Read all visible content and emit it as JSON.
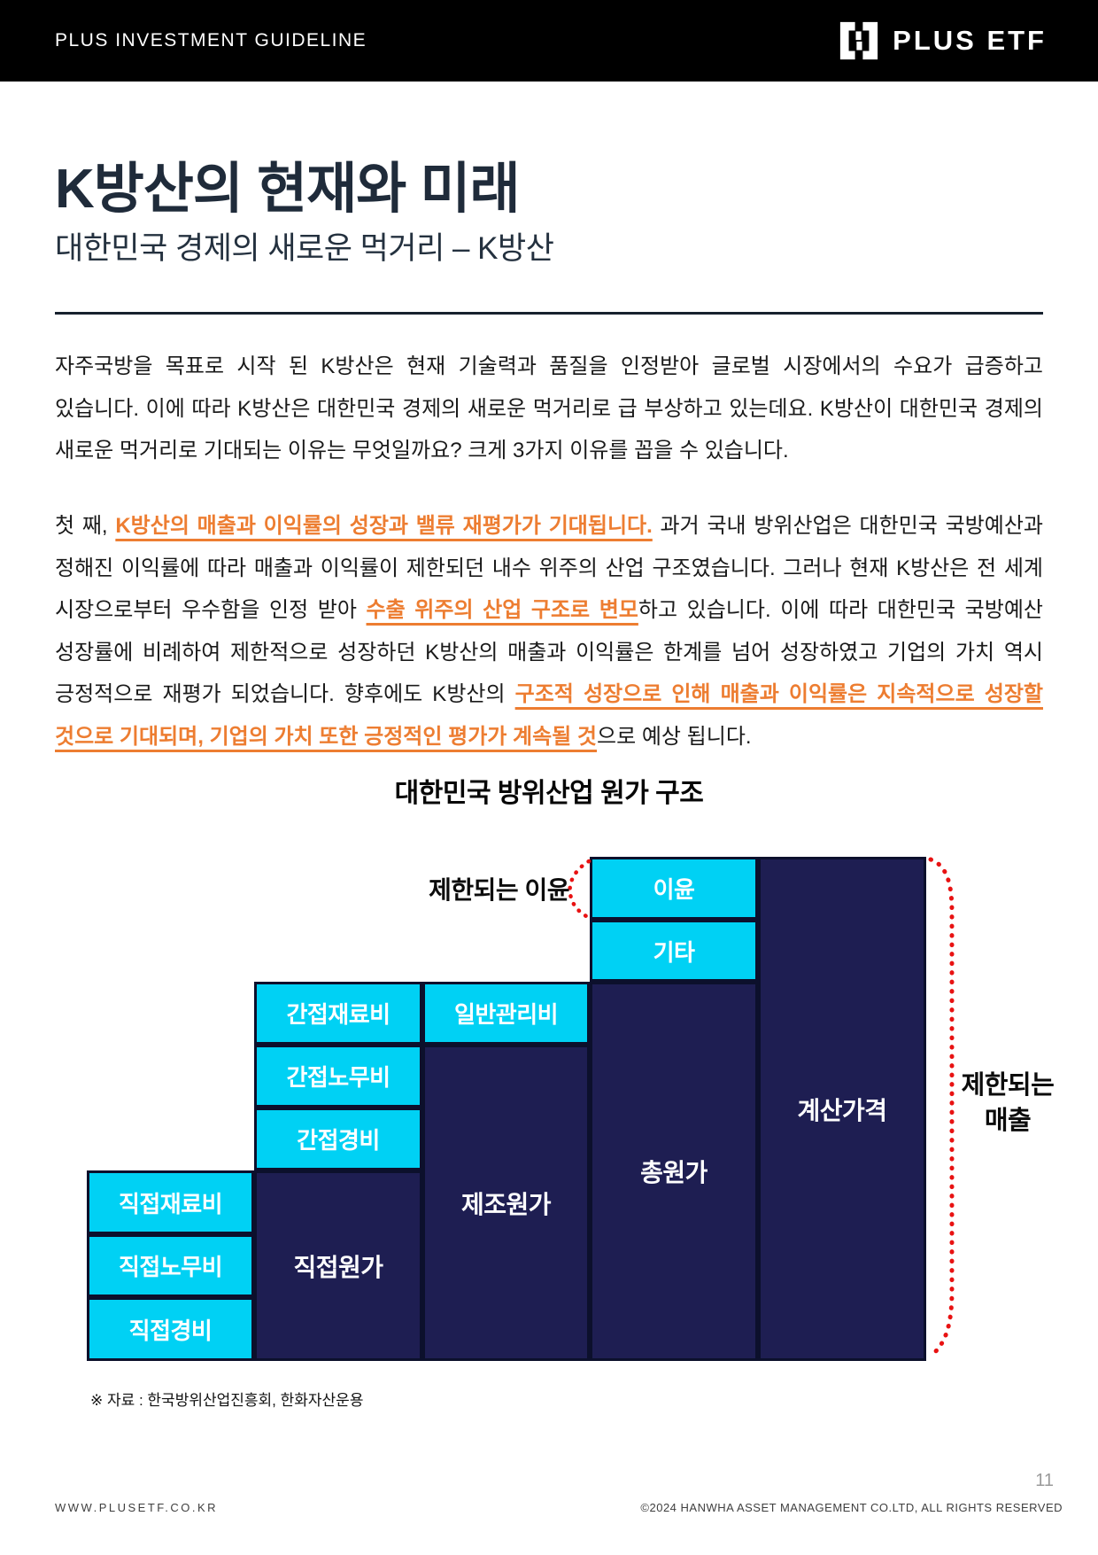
{
  "header": {
    "left_label": "PLUS INVESTMENT GUIDELINE",
    "brand_name": "PLUS ETF"
  },
  "headline": {
    "title": "K방산의 현재와 미래",
    "subtitle": "대한민국 경제의 새로운 먹거리 – K방산"
  },
  "paragraph1": "자주국방을 목표로 시작 된 K방산은 현재 기술력과 품질을 인정받아 글로벌 시장에서의 수요가 급증하고 있습니다. 이에 따라 K방산은 대한민국 경제의 새로운 먹거리로 급 부상하고 있는데요. K방산이 대한민국 경제의 새로운 먹거리로 기대되는 이유는 무엇일까요? 크게 3가지 이유를 꼽을 수 있습니다.",
  "paragraph2": {
    "segments": [
      {
        "text": "첫 째, ",
        "highlight": false
      },
      {
        "text": "K방산의 매출과 이익률의 성장과 밸류 재평가가 기대됩니다.",
        "highlight": true
      },
      {
        "text": " 과거 국내 방위산업은 대한민국 국방예산과 정해진 이익률에 따라 매출과 이익률이 제한되던 내수 위주의 산업 구조였습니다. 그러나 현재 K방산은 전 세계 시장으로부터 우수함을 인정 받아 ",
        "highlight": false
      },
      {
        "text": "수출 위주의 산업 구조로 변모",
        "highlight": true
      },
      {
        "text": "하고 있습니다. 이에 따라 대한민국 국방예산 성장률에 비례하여 제한적으로 성장하던 K방산의 매출과 이익률은 한계를 넘어 성장하였고 기업의 가치 역시 긍정적으로 재평가 되었습니다. 향후에도 K방산의 ",
        "highlight": false
      },
      {
        "text": "구조적 성장으로 인해 매출과 이익률은 지속적으로 성장할 것으로 기대되며, 기업의 가치 또한 긍정적인 평가가 계속될 것",
        "highlight": true
      },
      {
        "text": "으로 예상 됩니다.",
        "highlight": false
      }
    ]
  },
  "chart": {
    "title": "대한민국 방위산업 원가 구조",
    "annotation_profit": "제한되는 이윤",
    "annotation_sales_line1": "제한되는",
    "annotation_sales_line2": "매출",
    "colors": {
      "cyan": "#00d1f4",
      "navy": "#1e1e52",
      "red_dotted": "#e81212"
    },
    "blocks": [
      {
        "label": "이윤",
        "type": "cyan"
      },
      {
        "label": "기타",
        "type": "cyan"
      },
      {
        "label": "간접재료비",
        "type": "cyan"
      },
      {
        "label": "일반관리비",
        "type": "cyan"
      },
      {
        "label": "간접노무비",
        "type": "cyan"
      },
      {
        "label": "간접경비",
        "type": "cyan"
      },
      {
        "label": "직접재료비",
        "type": "cyan"
      },
      {
        "label": "직접노무비",
        "type": "cyan"
      },
      {
        "label": "직접경비",
        "type": "cyan"
      },
      {
        "label": "직접원가",
        "type": "navy"
      },
      {
        "label": "제조원가",
        "type": "navy"
      },
      {
        "label": "총원가",
        "type": "navy"
      },
      {
        "label": "계산가격",
        "type": "navy"
      }
    ]
  },
  "source_note": "※ 자료 : 한국방위산업진흥회, 한화자산운용",
  "footer": {
    "left": "WWW.PLUSETF.CO.KR",
    "right": "©2024 HANWHA ASSET MANAGEMENT CO.LTD, ALL RIGHTS RESERVED",
    "page_number": "11"
  }
}
